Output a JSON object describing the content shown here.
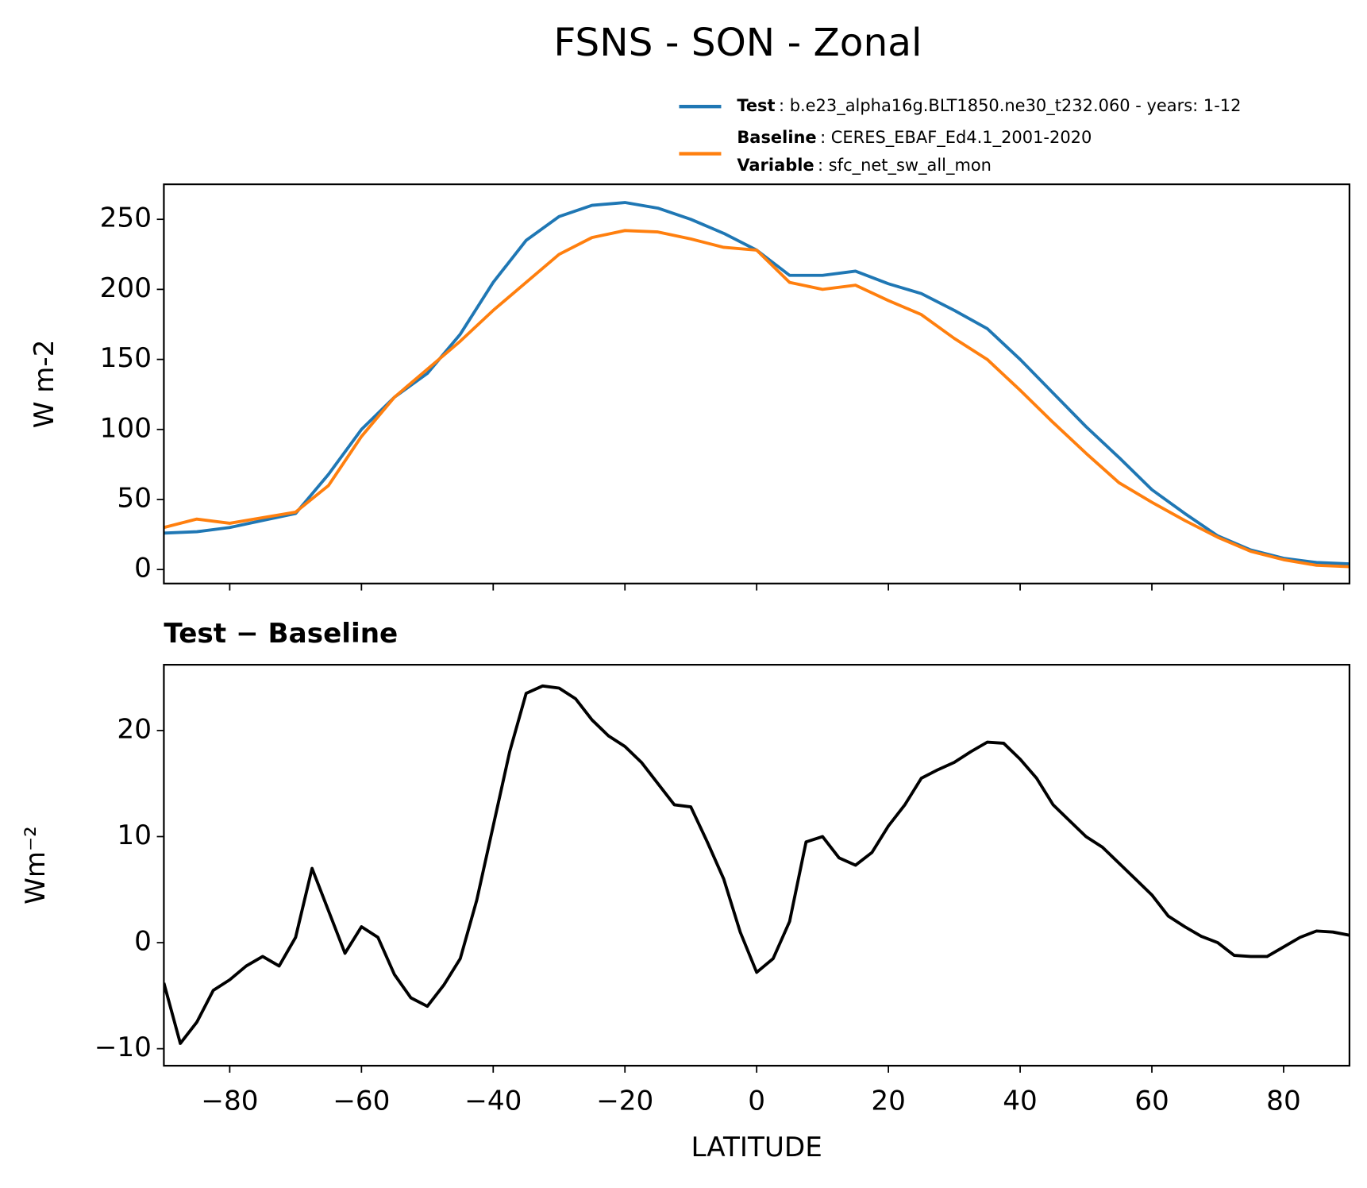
{
  "chart_data": [
    {
      "type": "line",
      "title": "FSNS - SON - Zonal",
      "ylabel": "W m-2",
      "x": [
        -90,
        -85,
        -80,
        -75,
        -70,
        -65,
        -60,
        -55,
        -50,
        -45,
        -40,
        -35,
        -30,
        -25,
        -20,
        -15,
        -10,
        -5,
        0,
        5,
        10,
        15,
        20,
        25,
        30,
        35,
        40,
        45,
        50,
        55,
        60,
        65,
        70,
        75,
        80,
        85,
        90
      ],
      "series": [
        {
          "name": "Test",
          "detail": ": b.e23_alpha16g.BLT1850.ne30_t232.060 - years: 1-12",
          "color": "#1f77b4",
          "values": [
            26,
            27,
            30,
            35,
            40,
            68,
            100,
            123,
            140,
            168,
            205,
            235,
            252,
            260,
            262,
            258,
            250,
            240,
            228,
            210,
            210,
            213,
            204,
            197,
            185,
            172,
            150,
            126,
            102,
            80,
            57,
            40,
            24,
            14,
            8,
            5,
            4
          ]
        },
        {
          "name": "Baseline",
          "detail": ": CERES_EBAF_Ed4.1_2001-2020",
          "color": "#ff7f0e",
          "values": [
            30,
            36,
            33,
            37,
            41,
            60,
            95,
            123,
            143,
            163,
            185,
            205,
            225,
            237,
            242,
            241,
            236,
            230,
            228,
            205,
            200,
            203,
            192,
            182,
            165,
            150,
            128,
            105,
            83,
            62,
            48,
            35,
            23,
            13,
            7,
            3,
            2
          ]
        }
      ],
      "legend_extra": {
        "name": "Variable",
        "detail": ": sfc_net_sw_all_mon"
      },
      "xlim": [
        -90,
        90
      ],
      "ylim": [
        -10,
        275
      ],
      "yticks": [
        0,
        50,
        100,
        150,
        200,
        250
      ]
    },
    {
      "type": "line",
      "title": "Test − Baseline",
      "ylabel": "Wm⁻²",
      "xlabel": "LATITUDE",
      "x": [
        -90,
        -87.5,
        -85,
        -82.5,
        -80,
        -77.5,
        -75,
        -72.5,
        -70,
        -67.5,
        -65,
        -62.5,
        -60,
        -57.5,
        -55,
        -52.5,
        -50,
        -47.5,
        -45,
        -42.5,
        -40,
        -37.5,
        -35,
        -32.5,
        -30,
        -27.5,
        -25,
        -22.5,
        -20,
        -17.5,
        -15,
        -12.5,
        -10,
        -7.5,
        -5,
        -2.5,
        0,
        2.5,
        5,
        7.5,
        10,
        12.5,
        15,
        17.5,
        20,
        22.5,
        25,
        27.5,
        30,
        32.5,
        35,
        37.5,
        40,
        42.5,
        45,
        47.5,
        50,
        52.5,
        55,
        57.5,
        60,
        62.5,
        65,
        67.5,
        70,
        72.5,
        75,
        77.5,
        80,
        82.5,
        85,
        87.5,
        90
      ],
      "series": [
        {
          "color": "#000000",
          "values": [
            -3.8,
            -9.5,
            -7.5,
            -4.5,
            -3.5,
            -2.2,
            -1.3,
            -2.2,
            0.5,
            7,
            3,
            -1,
            1.5,
            0.5,
            -3,
            -5.2,
            -6,
            -4,
            -1.5,
            4,
            11,
            18,
            23.5,
            24.2,
            24,
            23,
            21,
            19.5,
            18.5,
            17,
            15,
            13,
            12.8,
            9.5,
            6,
            1,
            -2.8,
            -1.5,
            2,
            9.5,
            10,
            8,
            7.3,
            8.5,
            11,
            13,
            15.5,
            16.3,
            17,
            18,
            18.9,
            18.8,
            17.3,
            15.5,
            13,
            11.5,
            10,
            9,
            7.5,
            6,
            4.5,
            2.5,
            1.5,
            0.6,
            0,
            -1.2,
            -1.3,
            -1.3,
            -0.4,
            0.5,
            1.1,
            1,
            0.7
          ]
        }
      ],
      "xlim": [
        -90,
        90
      ],
      "ylim": [
        -11.6,
        26.2
      ],
      "xticks": [
        {
          "value": -80,
          "label": "−80"
        },
        {
          "value": -60,
          "label": "−60"
        },
        {
          "value": -40,
          "label": "−40"
        },
        {
          "value": -20,
          "label": "−20"
        },
        0,
        20,
        40,
        60,
        80
      ],
      "yticks": [
        {
          "value": -10,
          "label": "−10"
        },
        0,
        10,
        20
      ]
    }
  ]
}
